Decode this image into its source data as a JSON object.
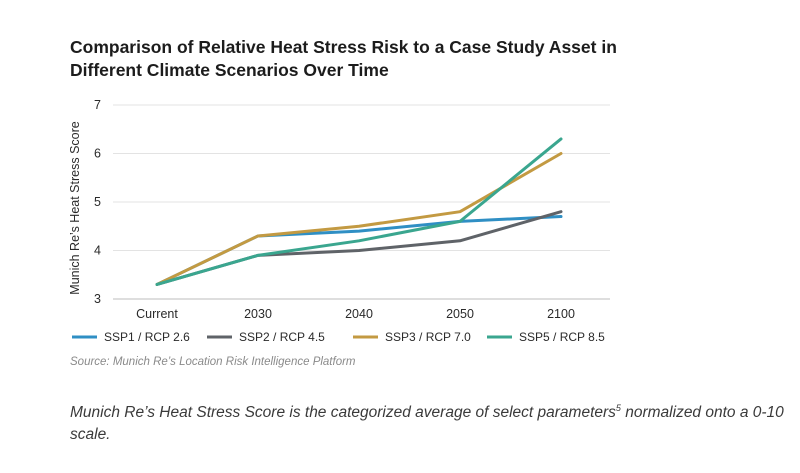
{
  "chart_data": {
    "type": "line",
    "title_line1": "Comparison of Relative Heat Stress Risk to a Case Study Asset in",
    "title_line2": "Different Climate Scenarios Over Time",
    "ylabel": "Munich Re’s Heat Stress Score",
    "xlabel": "",
    "categories": [
      "Current",
      "2030",
      "2040",
      "2050",
      "2100"
    ],
    "ylim": [
      3,
      7
    ],
    "yticks": [
      3,
      4,
      5,
      6,
      7
    ],
    "grid": true,
    "legend_position": "bottom",
    "series": [
      {
        "name": "SSP1 / RCP 2.6",
        "color": "#2f8fc4",
        "values": [
          3.3,
          4.3,
          4.4,
          4.6,
          4.7
        ]
      },
      {
        "name": "SSP2 / RCP 4.5",
        "color": "#5f6368",
        "values": [
          3.3,
          3.9,
          4.0,
          4.2,
          4.8
        ]
      },
      {
        "name": "SSP3 / RCP 7.0",
        "color": "#c39a42",
        "values": [
          3.3,
          4.3,
          4.5,
          4.8,
          6.0
        ]
      },
      {
        "name": "SSP5 / RCP 8.5",
        "color": "#3aa68f",
        "values": [
          3.3,
          3.9,
          4.2,
          4.6,
          6.3
        ]
      }
    ]
  },
  "source": "Source: Munich Re’s Location Risk Intelligence Platform",
  "note": {
    "text_before": "Munich Re’s Heat Stress Score is the categorized average of select parameters",
    "superscript": "5",
    "text_after": " normalized onto a 0-10 scale."
  }
}
